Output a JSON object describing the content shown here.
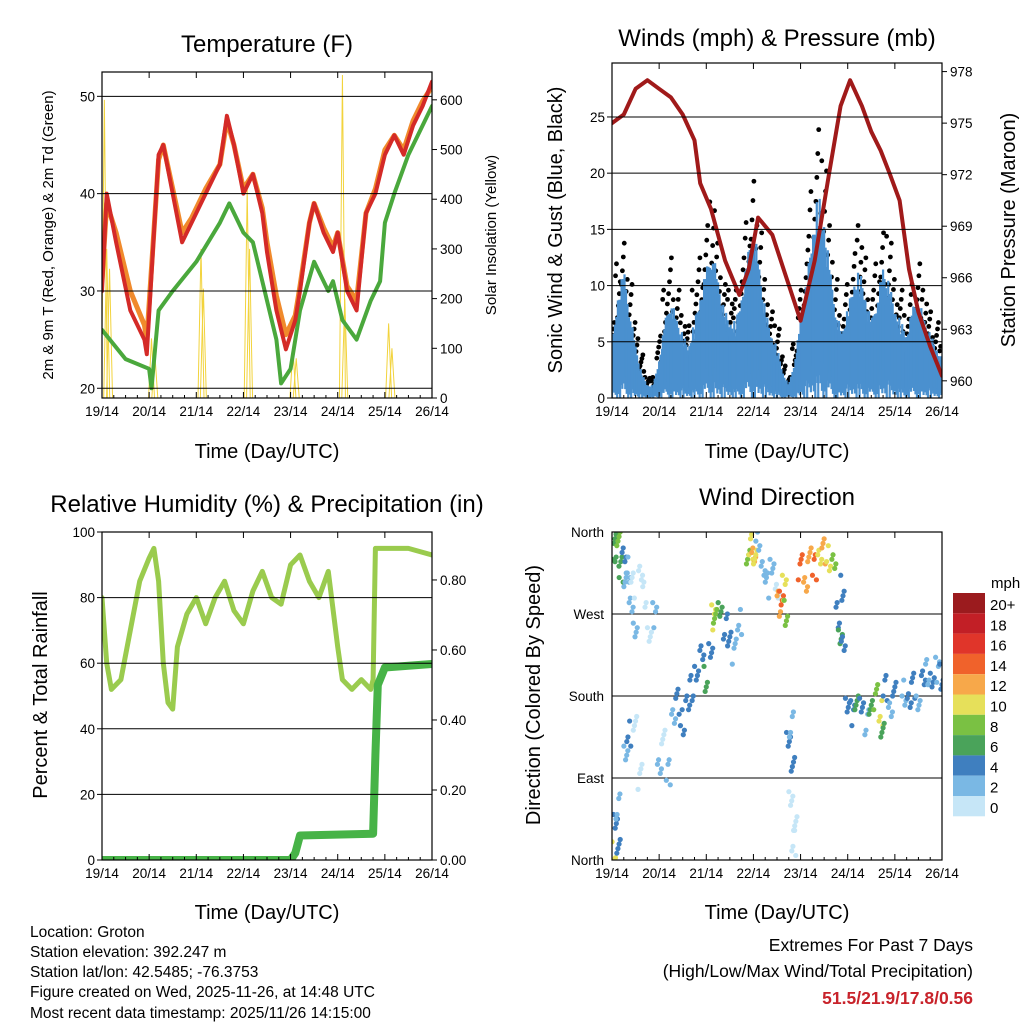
{
  "chart_data": [
    {
      "type": "line",
      "title": "Temperature (F)",
      "xlabel": "Time (Day/UTC)",
      "ylabel": "2m & 9m T (Red, Orange) & 2m Td (Green)",
      "ylabel_right": "Solar Insolation (Yellow)",
      "xlim_days": [
        0,
        7
      ],
      "x_ticks": [
        "19/14",
        "20/14",
        "21/14",
        "22/14",
        "23/14",
        "24/14",
        "25/14",
        "26/14"
      ],
      "ylim": [
        19,
        52.5
      ],
      "y_ticks": [
        20,
        30,
        40,
        50
      ],
      "ylim_right": [
        0,
        656
      ],
      "y_ticks_right": [
        0,
        100,
        200,
        300,
        400,
        500,
        600
      ],
      "grid": "horizontal",
      "colors": {
        "t2m": "#d42a27",
        "t9m": "#f08a2c",
        "td2m": "#4aa83c",
        "solar": "#f2d33c"
      },
      "series": [
        {
          "name": "2m T",
          "x": [
            0,
            0.1,
            0.3,
            0.6,
            0.9,
            0.95,
            1.2,
            1.3,
            1.5,
            1.7,
            1.9,
            2.2,
            2.5,
            2.65,
            2.8,
            3.0,
            3.2,
            3.4,
            3.5,
            3.7,
            3.9,
            4.1,
            4.2,
            4.4,
            4.5,
            4.7,
            4.9,
            5.0,
            5.2,
            5.4,
            5.6,
            5.8,
            6.0,
            6.2,
            6.4,
            6.6,
            6.8,
            7.0
          ],
          "y": [
            30,
            40,
            35,
            28,
            25,
            23.5,
            44,
            45,
            40,
            35,
            37,
            40,
            43,
            48,
            45,
            40,
            42,
            38,
            34,
            28,
            24,
            27,
            30,
            37,
            39,
            36,
            34,
            36,
            30,
            28,
            38,
            40,
            44,
            46,
            44,
            47,
            49,
            51.5
          ]
        },
        {
          "name": "9m T",
          "x": [
            0,
            0.1,
            0.3,
            0.6,
            0.9,
            0.95,
            1.2,
            1.3,
            1.5,
            1.7,
            1.9,
            2.2,
            2.5,
            2.65,
            2.8,
            3.0,
            3.2,
            3.4,
            3.5,
            3.7,
            3.9,
            4.1,
            4.2,
            4.4,
            4.5,
            4.7,
            4.9,
            5.0,
            5.2,
            5.4,
            5.6,
            5.8,
            6.0,
            6.2,
            6.4,
            6.6,
            6.8,
            7.0
          ],
          "y": [
            31,
            39,
            36,
            30,
            26.5,
            25,
            43.5,
            45,
            40.5,
            36,
            37.5,
            40.5,
            43,
            47.5,
            45,
            40.5,
            42,
            38.5,
            35,
            29.5,
            25.5,
            27.5,
            30.5,
            37,
            39,
            36.5,
            34.5,
            36,
            30.5,
            29,
            38,
            40.5,
            44.5,
            46,
            44.5,
            47.5,
            49.5,
            51
          ]
        },
        {
          "name": "2m Td",
          "x": [
            0,
            0.5,
            1.0,
            1.05,
            1.2,
            1.5,
            2.0,
            2.5,
            2.7,
            3.0,
            3.2,
            3.4,
            3.7,
            3.8,
            4.0,
            4.2,
            4.5,
            4.8,
            4.9,
            5.1,
            5.4,
            5.7,
            5.9,
            6.0,
            6.2,
            6.5,
            6.8,
            7.0
          ],
          "y": [
            26,
            23,
            22,
            20,
            28,
            30,
            33,
            37,
            39,
            36,
            35,
            31,
            25,
            20.5,
            22,
            28,
            33,
            30,
            31,
            27,
            25,
            29,
            31,
            37,
            40,
            44,
            47,
            49
          ]
        },
        {
          "name": "Solar Insolation",
          "axis": "right",
          "x": [
            0.05,
            0.1,
            0.16,
            1.05,
            1.12,
            2.1,
            2.15,
            3.08,
            3.13,
            4.05,
            4.12,
            5.1,
            5.15,
            6.08,
            6.15
          ],
          "y": [
            600,
            300,
            260,
            120,
            90,
            300,
            220,
            420,
            300,
            100,
            80,
            650,
            200,
            150,
            100
          ]
        }
      ]
    },
    {
      "type": "line",
      "title": "Winds (mph) & Pressure (mb)",
      "xlabel": "Time (Day/UTC)",
      "ylabel": "Sonic Wind & Gust (Blue, Black)",
      "ylabel_right": "Station Pressure (Maroon)",
      "xlim_days": [
        0,
        7
      ],
      "x_ticks": [
        "19/14",
        "20/14",
        "21/14",
        "22/14",
        "23/14",
        "24/14",
        "25/14",
        "26/14"
      ],
      "ylim": [
        0,
        29.8
      ],
      "y_ticks": [
        0,
        5,
        10,
        15,
        20,
        25
      ],
      "ylim_right": [
        959.0,
        978.5
      ],
      "y_ticks_right": [
        960,
        963,
        966,
        969,
        972,
        975,
        978
      ],
      "grid": "horizontal",
      "colors": {
        "wind": "#4a90cf",
        "gust": "#000000",
        "pressure": "#a01a1a"
      },
      "series": [
        {
          "name": "Sonic Wind",
          "dt_days": 0.125,
          "y": [
            4,
            8,
            10,
            7,
            4,
            2,
            1,
            1,
            3,
            6,
            8,
            6,
            5,
            4,
            6,
            8,
            10,
            12,
            9,
            7,
            6,
            6,
            8,
            11,
            14,
            10,
            7,
            5,
            4,
            2,
            1,
            3,
            6,
            9,
            13,
            16,
            14,
            10,
            7,
            5,
            7,
            9,
            10,
            8,
            6,
            8,
            10,
            9,
            7,
            6,
            5,
            7,
            8,
            6,
            5,
            4,
            3
          ]
        },
        {
          "name": "Gust",
          "dt_days": 0.125,
          "y": [
            7,
            13,
            15,
            11,
            7,
            4,
            2,
            2,
            6,
            10,
            13,
            10,
            8,
            7,
            10,
            13,
            16,
            19,
            15,
            11,
            10,
            10,
            13,
            17,
            21,
            16,
            11,
            8,
            7,
            4,
            2,
            5,
            10,
            15,
            20,
            26,
            22,
            16,
            11,
            8,
            11,
            14,
            16,
            13,
            10,
            13,
            16,
            15,
            11,
            10,
            8,
            11,
            13,
            10,
            8,
            7,
            5
          ]
        },
        {
          "name": "Station Pressure",
          "axis": "right",
          "x": [
            0,
            0.25,
            0.5,
            0.75,
            1.0,
            1.25,
            1.5,
            1.75,
            1.87,
            2.1,
            2.4,
            2.7,
            2.9,
            3.1,
            3.4,
            3.7,
            4.0,
            4.3,
            4.6,
            4.85,
            5.05,
            5.3,
            5.5,
            5.7,
            5.9,
            6.1,
            6.3,
            6.5,
            6.75,
            7.0
          ],
          "y": [
            975,
            975.5,
            977,
            977.5,
            977,
            976.5,
            975.5,
            974,
            971.5,
            970,
            967,
            965,
            966.5,
            969.5,
            968.5,
            966,
            963.5,
            967,
            972,
            976,
            977.5,
            976,
            974.5,
            973.4,
            972,
            970.5,
            966.5,
            964,
            962,
            960.3
          ]
        }
      ]
    },
    {
      "type": "line",
      "title": "Relative Humidity (%) & Precipitation (in)",
      "xlabel": "Time (Day/UTC)",
      "ylabel": "Percent & Total Rainfall",
      "xlim_days": [
        0,
        7
      ],
      "x_ticks": [
        "19/14",
        "20/14",
        "21/14",
        "22/14",
        "23/14",
        "24/14",
        "25/14",
        "26/14"
      ],
      "ylim": [
        0,
        100
      ],
      "y_ticks": [
        0,
        20,
        40,
        60,
        80,
        100
      ],
      "ylim_right": [
        0,
        0.937
      ],
      "y_ticks_right": [
        "0.00",
        "0.20",
        "0.40",
        "0.60",
        "0.80"
      ],
      "grid": "horizontal",
      "colors": {
        "rh": "#9acb4e",
        "precip": "#47b347"
      },
      "series": [
        {
          "name": "Relative Humidity",
          "x": [
            0,
            0.1,
            0.2,
            0.4,
            0.6,
            0.8,
            1.0,
            1.1,
            1.2,
            1.3,
            1.4,
            1.5,
            1.6,
            1.8,
            2.0,
            2.2,
            2.4,
            2.6,
            2.8,
            3.0,
            3.2,
            3.4,
            3.6,
            3.8,
            4.0,
            4.2,
            4.4,
            4.6,
            4.8,
            5.0,
            5.1,
            5.3,
            5.5,
            5.7,
            5.75,
            5.8,
            6.0,
            6.5,
            7.0
          ],
          "y": [
            80,
            60,
            52,
            55,
            70,
            85,
            92,
            95,
            85,
            60,
            48,
            46,
            65,
            75,
            80,
            72,
            80,
            85,
            76,
            72,
            82,
            88,
            80,
            78,
            90,
            93,
            85,
            80,
            88,
            65,
            55,
            52,
            55,
            52,
            55,
            95,
            95,
            95,
            93
          ]
        },
        {
          "name": "Total Precipitation",
          "axis": "right",
          "x": [
            0,
            4.0,
            4.1,
            4.2,
            5.75,
            5.8,
            5.85,
            6.0,
            7.0
          ],
          "y": [
            0,
            0,
            0.02,
            0.07,
            0.075,
            0.3,
            0.5,
            0.55,
            0.56
          ]
        }
      ]
    },
    {
      "type": "scatter",
      "title": "Wind Direction",
      "xlabel": "Time (Day/UTC)",
      "ylabel": "Direction (Colored By Speed)",
      "xlim_days": [
        0,
        7
      ],
      "x_ticks": [
        "19/14",
        "20/14",
        "21/14",
        "22/14",
        "23/14",
        "24/14",
        "25/14",
        "26/14"
      ],
      "ylim_deg": [
        0,
        360
      ],
      "y_ticks": [
        "North",
        "East",
        "South",
        "West",
        "North"
      ],
      "grid": "horizontal",
      "legend": {
        "title": "mph",
        "placement": "right",
        "labels": [
          "20+",
          "18",
          "16",
          "14",
          "12",
          "10",
          "8",
          "6",
          "4",
          "2",
          "0"
        ],
        "colors": [
          "#9b1b1e",
          "#c21f26",
          "#e0352a",
          "#f0622b",
          "#f7a84a",
          "#e6e05a",
          "#7ac143",
          "#4aa35a",
          "#3f7fbf",
          "#7ab8e4",
          "#c6e6f7"
        ]
      },
      "points": [
        [
          0.05,
          345,
          7
        ],
        [
          0.1,
          335,
          6
        ],
        [
          0.15,
          350,
          8
        ],
        [
          0.2,
          320,
          6
        ],
        [
          0.25,
          340,
          5
        ],
        [
          0.3,
          300,
          3
        ],
        [
          0.35,
          320,
          2
        ],
        [
          0.4,
          280,
          2
        ],
        [
          0.45,
          300,
          1
        ],
        [
          0.5,
          260,
          2
        ],
        [
          0.6,
          310,
          1
        ],
        [
          0.7,
          290,
          1
        ],
        [
          0.8,
          250,
          1
        ],
        [
          0.9,
          270,
          2
        ],
        [
          0.05,
          5,
          10
        ],
        [
          0.08,
          40,
          4
        ],
        [
          0.12,
          60,
          3
        ],
        [
          0.15,
          20,
          4
        ],
        [
          0.3,
          110,
          3
        ],
        [
          0.35,
          140,
          4
        ],
        [
          0.5,
          150,
          1
        ],
        [
          0.6,
          90,
          1
        ],
        [
          1.0,
          110,
          2
        ],
        [
          1.1,
          130,
          1
        ],
        [
          1.2,
          95,
          2
        ],
        [
          1.3,
          160,
          3
        ],
        [
          1.4,
          175,
          5
        ],
        [
          1.5,
          150,
          4
        ],
        [
          1.6,
          170,
          4
        ],
        [
          1.7,
          190,
          4
        ],
        [
          1.8,
          210,
          5
        ],
        [
          1.9,
          220,
          4
        ],
        [
          2.0,
          200,
          6
        ],
        [
          2.1,
          230,
          4
        ],
        [
          2.15,
          265,
          10
        ],
        [
          2.2,
          275,
          8
        ],
        [
          2.3,
          270,
          6
        ],
        [
          2.4,
          255,
          4
        ],
        [
          2.5,
          245,
          4
        ],
        [
          2.6,
          230,
          3
        ],
        [
          2.7,
          260,
          3
        ],
        [
          2.9,
          330,
          9
        ],
        [
          2.95,
          345,
          11
        ],
        [
          3.0,
          340,
          12
        ],
        [
          3.05,
          325,
          10
        ],
        [
          3.1,
          355,
          2
        ],
        [
          3.2,
          320,
          2
        ],
        [
          3.3,
          300,
          3
        ],
        [
          3.4,
          330,
          2
        ],
        [
          3.5,
          290,
          1
        ],
        [
          3.55,
          280,
          12
        ],
        [
          3.6,
          290,
          14
        ],
        [
          3.65,
          300,
          10
        ],
        [
          3.7,
          270,
          8
        ],
        [
          3.75,
          130,
          4
        ],
        [
          3.8,
          150,
          3
        ],
        [
          3.85,
          110,
          4
        ],
        [
          3.8,
          60,
          1
        ],
        [
          3.85,
          20,
          1
        ],
        [
          3.9,
          40,
          1
        ],
        [
          4.0,
          320,
          14
        ],
        [
          4.1,
          310,
          13
        ],
        [
          4.2,
          330,
          12
        ],
        [
          4.3,
          320,
          14
        ],
        [
          4.4,
          335,
          10
        ],
        [
          4.5,
          340,
          12
        ],
        [
          4.6,
          330,
          10
        ],
        [
          4.7,
          325,
          8
        ],
        [
          4.8,
          270,
          5
        ],
        [
          4.85,
          250,
          6
        ],
        [
          4.9,
          230,
          4
        ],
        [
          4.9,
          300,
          4
        ],
        [
          5.0,
          170,
          4
        ],
        [
          5.1,
          160,
          4
        ],
        [
          5.2,
          180,
          6
        ],
        [
          5.3,
          165,
          5
        ],
        [
          5.4,
          150,
          3
        ],
        [
          5.5,
          170,
          6
        ],
        [
          5.6,
          180,
          8
        ],
        [
          5.7,
          160,
          10
        ],
        [
          5.75,
          140,
          6
        ],
        [
          5.8,
          190,
          4
        ],
        [
          5.9,
          170,
          3
        ],
        [
          6.0,
          180,
          5
        ],
        [
          6.2,
          185,
          3
        ],
        [
          6.3,
          175,
          4
        ],
        [
          6.4,
          190,
          4
        ],
        [
          6.5,
          180,
          3
        ],
        [
          6.6,
          195,
          4
        ],
        [
          6.7,
          205,
          3
        ],
        [
          6.8,
          200,
          4
        ],
        [
          6.9,
          210,
          3
        ],
        [
          7.0,
          200,
          4
        ]
      ]
    }
  ],
  "footer": {
    "location": "Location: Groton",
    "elevation": "Station elevation: 392.247 m",
    "latlon": "Station lat/lon: 42.5485; -76.3753",
    "created": "Figure created on Wed, 2025-11-26, at 14:48 UTC",
    "timestamp": "Most recent data timestamp: 2025/11/26 14:15:00"
  },
  "extremes": {
    "heading": "Extremes For Past 7 Days",
    "subheading": "(High/Low/Max Wind/Total Precipitation)",
    "values": "51.5/21.9/17.8/0.56"
  }
}
